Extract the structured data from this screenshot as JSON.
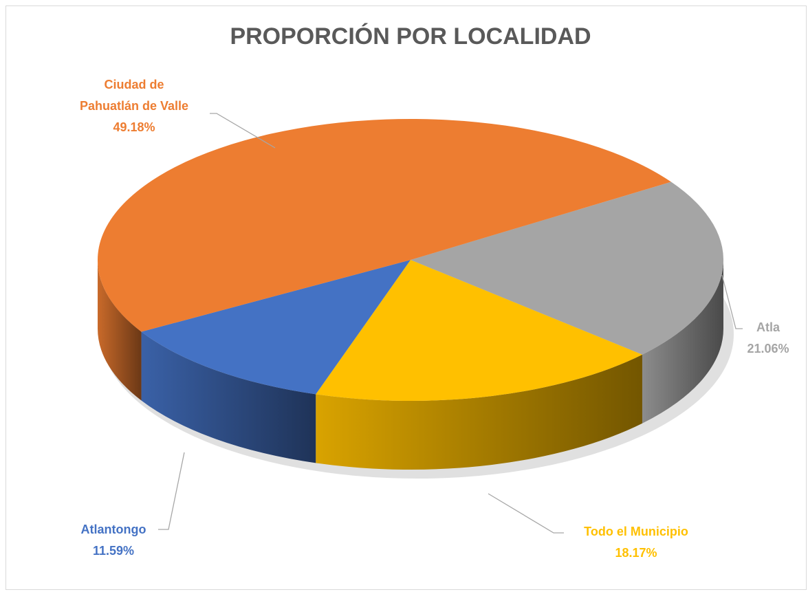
{
  "chart_data": {
    "type": "pie3d",
    "title": "PROPORCIÓN POR LOCALIDAD",
    "categories": [
      "Atla",
      "Todo el Municipio",
      "Atlantongo",
      "Ciudad de Pahuatlán de Valle"
    ],
    "values": [
      21.06,
      18.17,
      11.59,
      49.18
    ],
    "value_labels": [
      "21.06%",
      "18.17%",
      "11.59%",
      "49.18%"
    ],
    "colors": [
      "#a5a5a5",
      "#ffc000",
      "#4472c4",
      "#ed7d31"
    ]
  }
}
